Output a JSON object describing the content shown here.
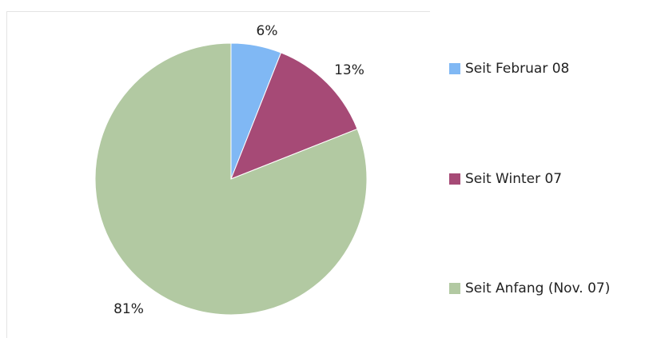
{
  "chart_data": {
    "type": "pie",
    "title": "",
    "slices": [
      {
        "label": "Seit Februar 08",
        "value": 6,
        "value_label": "6%",
        "color": "#80b8f4"
      },
      {
        "label": "Seit Winter 07",
        "value": 13,
        "value_label": "13%",
        "color": "#a64a76"
      },
      {
        "label": "Seit Anfang (Nov. 07)",
        "value": 81,
        "value_label": "81%",
        "color": "#b2c9a2"
      }
    ],
    "legend_position": "right"
  }
}
